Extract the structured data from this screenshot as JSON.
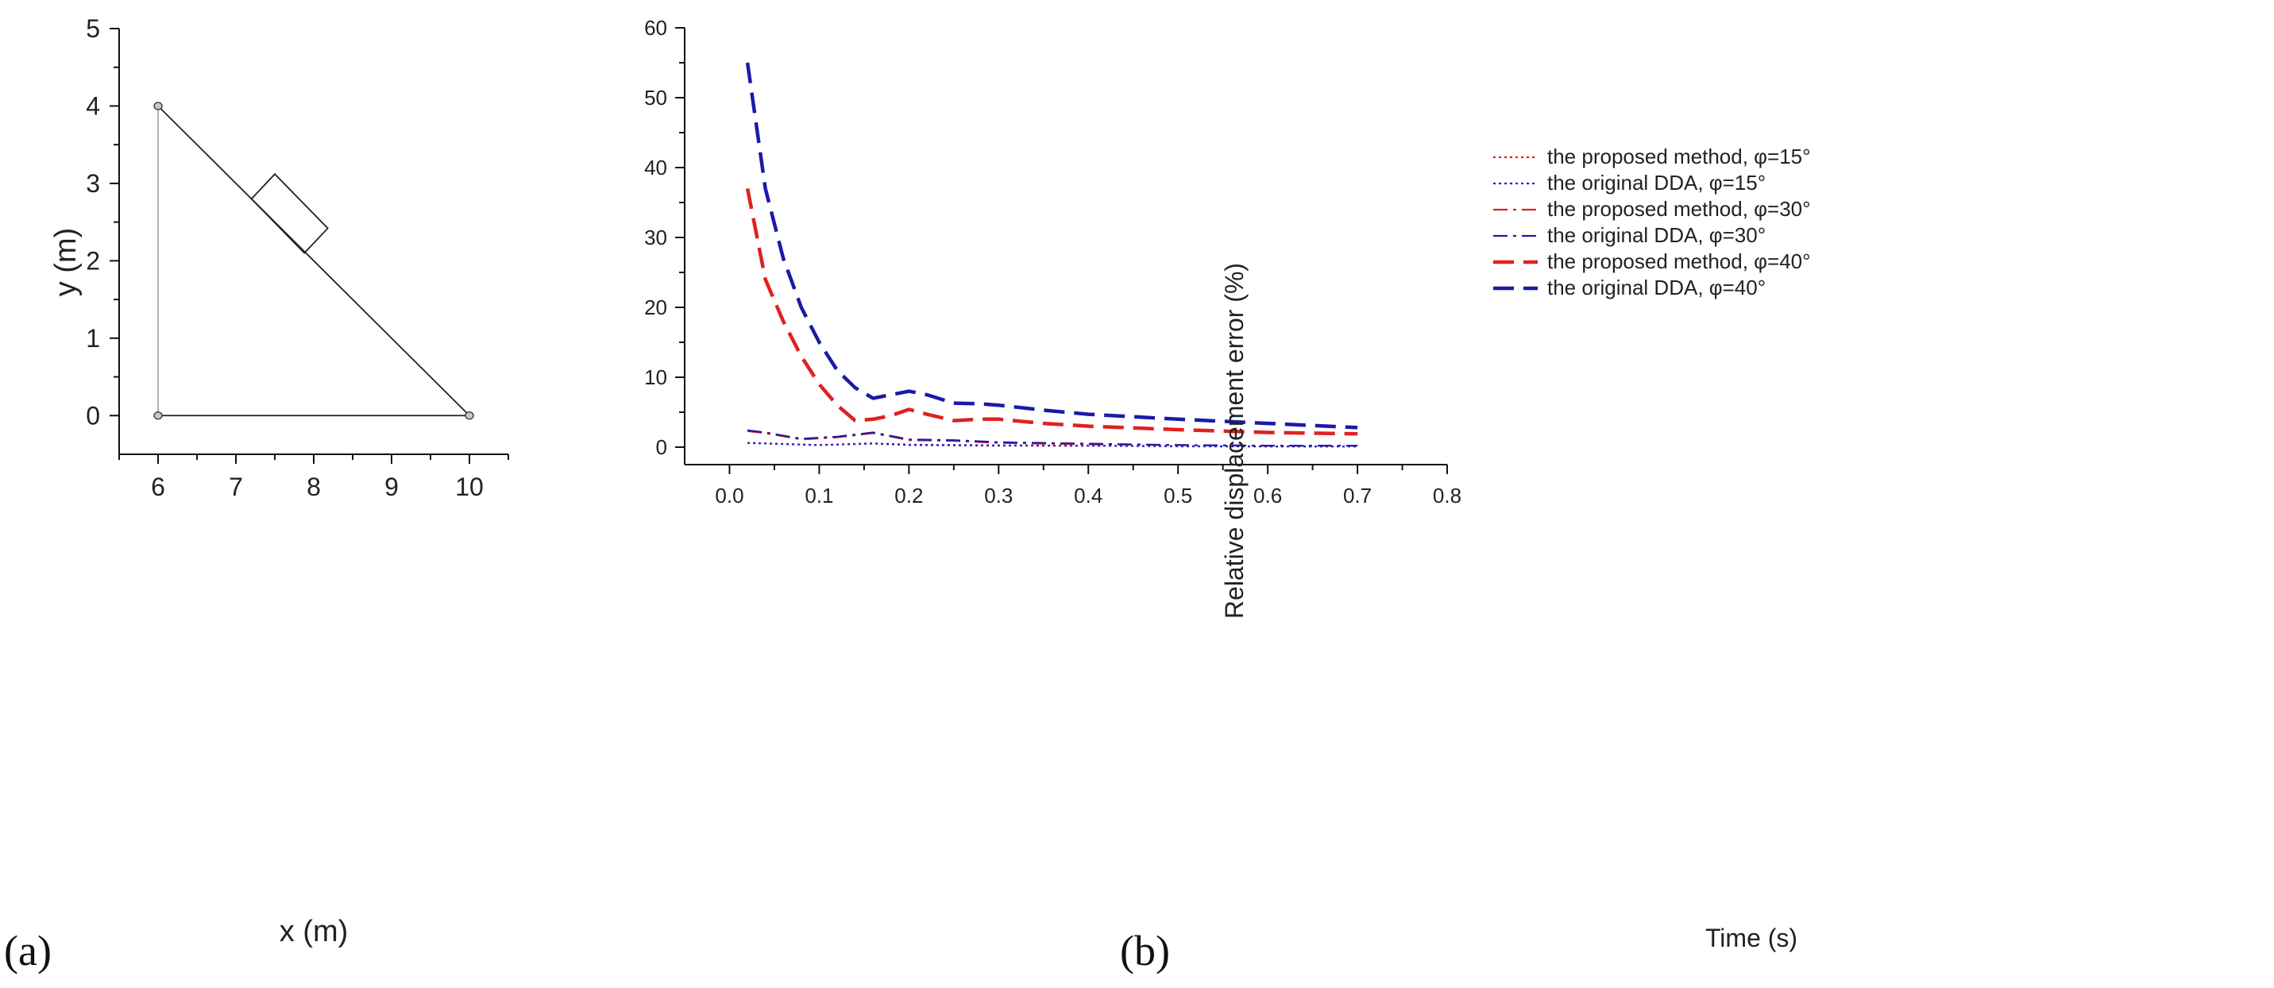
{
  "figure": {
    "panel_a_label": "(a)",
    "panel_b_label": "(b)"
  },
  "chart_data": [
    {
      "type": "diagram",
      "panel": "a",
      "xlabel": "x (m)",
      "ylabel": "y (m)",
      "xlim": [
        5.5,
        10.5
      ],
      "ylim": [
        -0.5,
        5
      ],
      "xticks": [
        6,
        7,
        8,
        9,
        10
      ],
      "yticks": [
        0,
        1,
        2,
        3,
        4,
        5
      ],
      "slope_vertices": [
        [
          6,
          4
        ],
        [
          6,
          0
        ],
        [
          10,
          0
        ]
      ],
      "block_corners": [
        [
          7.2,
          2.8
        ],
        [
          7.5,
          3.12
        ],
        [
          8.18,
          2.42
        ],
        [
          7.88,
          2.1
        ]
      ]
    },
    {
      "type": "line",
      "panel": "b",
      "xlabel": "Time (s)",
      "ylabel": "Relative displacement error (%)",
      "xlim": [
        -0.05,
        0.8
      ],
      "ylim": [
        -2.5,
        60
      ],
      "xticks": [
        0.0,
        0.1,
        0.2,
        0.3,
        0.4,
        0.5,
        0.6,
        0.7,
        0.8
      ],
      "xtick_labels": [
        "0.0",
        "0.1",
        "0.2",
        "0.3",
        "0.4",
        "0.5",
        "0.6",
        "0.7",
        "0.8"
      ],
      "yticks": [
        0,
        10,
        20,
        30,
        40,
        50,
        60
      ],
      "legend_position": "top-right",
      "series": [
        {
          "name": "the proposed method, φ=15°",
          "color": "#e02020",
          "style": "dotted",
          "x": [
            0.02,
            0.1,
            0.16,
            0.2,
            0.3,
            0.4,
            0.5,
            0.6,
            0.7
          ],
          "values": [
            0.6,
            0.3,
            0.5,
            0.3,
            0.2,
            0.2,
            0.1,
            0.1,
            0.1
          ]
        },
        {
          "name": "the original DDA, φ=15°",
          "color": "#2020e0",
          "style": "dotted",
          "x": [
            0.02,
            0.1,
            0.16,
            0.2,
            0.3,
            0.4,
            0.5,
            0.6,
            0.7
          ],
          "values": [
            0.6,
            0.3,
            0.55,
            0.35,
            0.25,
            0.2,
            0.15,
            0.1,
            0.1
          ]
        },
        {
          "name": "the proposed method, φ=30°",
          "color": "#e02020",
          "style": "dashdot",
          "x": [
            0.02,
            0.04,
            0.08,
            0.12,
            0.16,
            0.2,
            0.25,
            0.3,
            0.4,
            0.5,
            0.6,
            0.7
          ],
          "values": [
            2.3,
            2.0,
            1.1,
            1.4,
            2.0,
            1.0,
            0.9,
            0.6,
            0.4,
            0.3,
            0.2,
            0.2
          ]
        },
        {
          "name": "the original DDA, φ=30°",
          "color": "#1a1aa8",
          "style": "dashdot",
          "x": [
            0.02,
            0.04,
            0.08,
            0.12,
            0.16,
            0.2,
            0.25,
            0.3,
            0.4,
            0.5,
            0.6,
            0.7
          ],
          "values": [
            2.4,
            2.1,
            1.2,
            1.5,
            2.1,
            1.1,
            1.0,
            0.7,
            0.5,
            0.3,
            0.2,
            0.2
          ]
        },
        {
          "name": "the proposed method, φ=40°",
          "color": "#e02020",
          "style": "dashed",
          "x": [
            0.02,
            0.04,
            0.06,
            0.08,
            0.1,
            0.12,
            0.14,
            0.16,
            0.18,
            0.2,
            0.22,
            0.25,
            0.28,
            0.3,
            0.35,
            0.4,
            0.5,
            0.6,
            0.7
          ],
          "values": [
            37,
            24,
            18,
            13,
            9,
            6,
            3.8,
            4.0,
            4.5,
            5.4,
            4.7,
            3.8,
            4.0,
            4.0,
            3.4,
            3.0,
            2.5,
            2.1,
            1.9
          ]
        },
        {
          "name": "the original DDA, φ=40°",
          "color": "#1a1aa8",
          "style": "dashed",
          "x": [
            0.02,
            0.04,
            0.06,
            0.08,
            0.1,
            0.12,
            0.14,
            0.16,
            0.18,
            0.2,
            0.22,
            0.25,
            0.28,
            0.3,
            0.35,
            0.4,
            0.5,
            0.6,
            0.7
          ],
          "values": [
            55,
            37,
            27,
            20,
            15,
            11,
            8.5,
            7.0,
            7.5,
            8.0,
            7.5,
            6.3,
            6.2,
            6.0,
            5.3,
            4.7,
            4.0,
            3.4,
            2.8
          ]
        }
      ]
    }
  ]
}
